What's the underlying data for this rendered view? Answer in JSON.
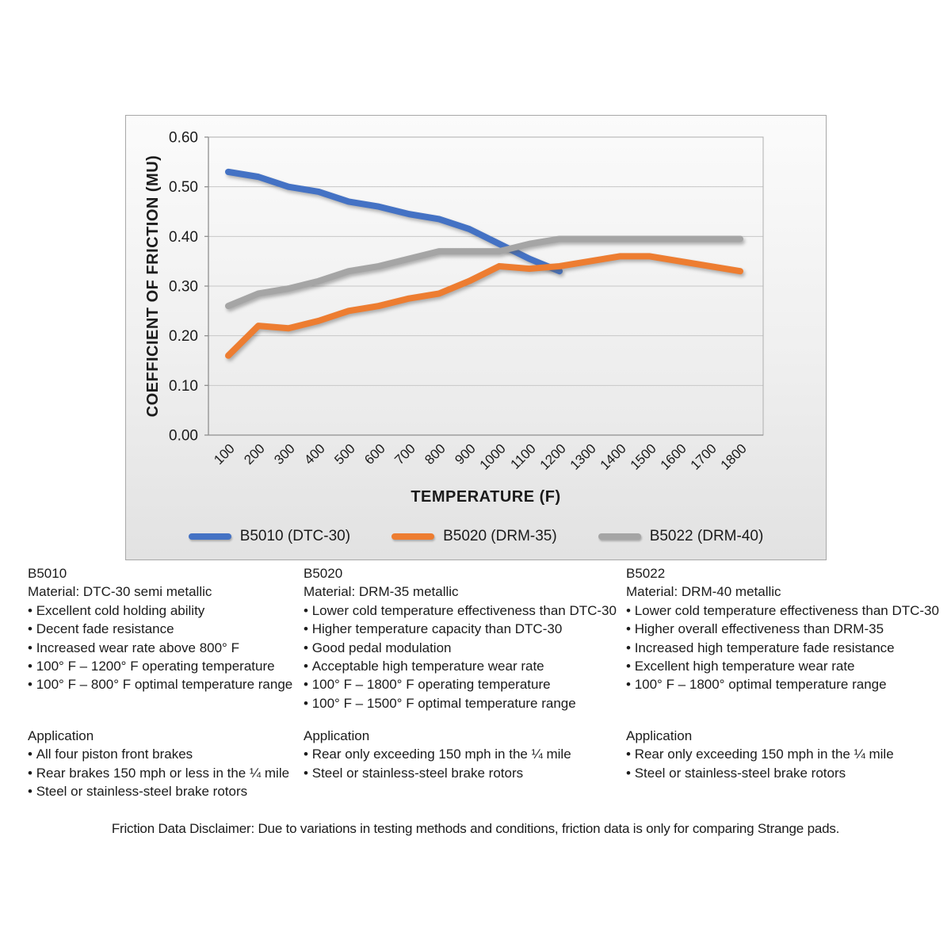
{
  "chart_data": {
    "type": "line",
    "title": "",
    "xlabel": "TEMPERATURE (F)",
    "ylabel": "COEFFICIENT OF FRICTION (MU)",
    "x": [
      100,
      200,
      300,
      400,
      500,
      600,
      700,
      800,
      900,
      1000,
      1100,
      1200,
      1300,
      1400,
      1500,
      1600,
      1700,
      1800
    ],
    "xtick_labels": [
      "100",
      "200",
      "300",
      "400",
      "500",
      "600",
      "700",
      "800",
      "900",
      "1000",
      "1100",
      "1200",
      "1300",
      "1400",
      "1500",
      "1600",
      "1700",
      "1800"
    ],
    "ylim": [
      0,
      0.6
    ],
    "yticks": [
      0,
      0.1,
      0.2,
      0.3,
      0.4,
      0.5,
      0.6
    ],
    "ytick_labels": [
      "0.00",
      "0.10",
      "0.20",
      "0.30",
      "0.40",
      "0.50",
      "0.60"
    ],
    "grid": true,
    "legend_position": "bottom",
    "series": [
      {
        "name": "B5010 (DTC-30)",
        "color": "#4472C4",
        "x": [
          100,
          200,
          300,
          400,
          500,
          600,
          700,
          800,
          900,
          1000,
          1100,
          1200
        ],
        "values": [
          0.53,
          0.52,
          0.5,
          0.49,
          0.47,
          0.46,
          0.445,
          0.435,
          0.415,
          0.385,
          0.355,
          0.33
        ]
      },
      {
        "name": "B5020 (DRM-35)",
        "color": "#ED7D31",
        "x": [
          100,
          200,
          300,
          400,
          500,
          600,
          700,
          800,
          900,
          1000,
          1100,
          1200,
          1300,
          1400,
          1500,
          1600,
          1700,
          1800
        ],
        "values": [
          0.16,
          0.22,
          0.215,
          0.23,
          0.25,
          0.26,
          0.275,
          0.285,
          0.31,
          0.34,
          0.335,
          0.34,
          0.35,
          0.36,
          0.36,
          0.35,
          0.34,
          0.33
        ]
      },
      {
        "name": "B5022 (DRM-40)",
        "color": "#A5A5A5",
        "x": [
          100,
          200,
          300,
          400,
          500,
          600,
          700,
          800,
          900,
          1000,
          1100,
          1200,
          1300,
          1400,
          1500,
          1600,
          1700,
          1800
        ],
        "values": [
          0.26,
          0.285,
          0.295,
          0.31,
          0.33,
          0.34,
          0.355,
          0.37,
          0.37,
          0.37,
          0.385,
          0.395,
          0.395,
          0.395,
          0.395,
          0.395,
          0.395,
          0.395
        ]
      }
    ]
  },
  "columns": [
    {
      "title": "B5010",
      "material": "Material: DTC-30 semi metallic",
      "features": [
        "Excellent cold holding ability",
        "Decent fade resistance",
        "Increased wear rate above 800° F",
        "100° F – 1200° F operating temperature",
        "100° F – 800° F optimal temperature range"
      ],
      "application_title": "Application",
      "applications": [
        "All four piston front brakes",
        "Rear brakes 150 mph or less in the ¼ mile",
        "Steel or stainless-steel brake rotors"
      ]
    },
    {
      "title": "B5020",
      "material": "Material: DRM-35 metallic",
      "features": [
        "Lower cold temperature effectiveness than DTC-30",
        "Higher temperature capacity than DTC-30",
        "Good pedal modulation",
        "Acceptable high temperature wear rate",
        "100° F – 1800° F operating temperature",
        "100° F – 1500° F optimal temperature range"
      ],
      "application_title": "Application",
      "applications": [
        "Rear only exceeding 150 mph in the ¼ mile",
        "Steel or stainless-steel brake rotors"
      ]
    },
    {
      "title": "B5022",
      "material": "Material: DRM-40 metallic",
      "features": [
        "Lower cold temperature effectiveness than DTC-30",
        "Higher overall effectiveness than DRM-35",
        "Increased high temperature fade resistance",
        "Excellent high temperature wear rate",
        "100° F – 1800° optimal temperature range"
      ],
      "application_title": "Application",
      "applications": [
        "Rear only exceeding 150 mph in the ¼ mile",
        "Steel or stainless-steel brake rotors"
      ]
    }
  ],
  "disclaimer": "Friction Data Disclaimer:  Due to variations in testing methods and conditions, friction data is only for comparing Strange pads."
}
